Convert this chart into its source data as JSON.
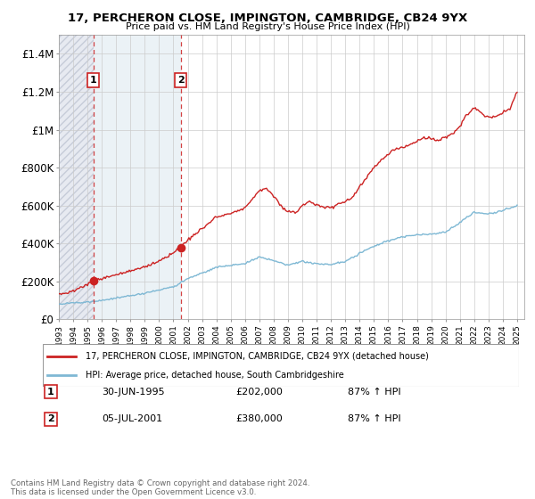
{
  "title": "17, PERCHERON CLOSE, IMPINGTON, CAMBRIDGE, CB24 9YX",
  "subtitle": "Price paid vs. HM Land Registry's House Price Index (HPI)",
  "legend_entry1": "17, PERCHERON CLOSE, IMPINGTON, CAMBRIDGE, CB24 9YX (detached house)",
  "legend_entry2": "HPI: Average price, detached house, South Cambridgeshire",
  "sale1_date": "30-JUN-1995",
  "sale1_price": 202000,
  "sale1_hpi": "87% ↑ HPI",
  "sale2_date": "05-JUL-2001",
  "sale2_price": 380000,
  "sale2_hpi": "87% ↑ HPI",
  "footer": "Contains HM Land Registry data © Crown copyright and database right 2024.\nThis data is licensed under the Open Government Licence v3.0.",
  "hpi_color": "#7eb8d4",
  "price_color": "#cc2222",
  "hatch_color": "#d8dde8",
  "light_blue_bg": "#dce8f0",
  "ylim": [
    0,
    1500000
  ],
  "yticks": [
    0,
    200000,
    400000,
    600000,
    800000,
    1000000,
    1200000,
    1400000
  ],
  "ytick_labels": [
    "£0",
    "£200K",
    "£400K",
    "£600K",
    "£800K",
    "£1M",
    "£1.2M",
    "£1.4M"
  ],
  "xmin": 1993,
  "xmax": 2025.5,
  "sale1_x": 1995.4167,
  "sale2_x": 2001.5,
  "hpi_keypoints": [
    [
      1993.0,
      80000
    ],
    [
      1994.0,
      88000
    ],
    [
      1995.0,
      93000
    ],
    [
      1996.0,
      100000
    ],
    [
      1997.0,
      112000
    ],
    [
      1998.0,
      125000
    ],
    [
      1999.0,
      138000
    ],
    [
      2000.0,
      155000
    ],
    [
      2001.0,
      172000
    ],
    [
      2002.0,
      215000
    ],
    [
      2003.0,
      245000
    ],
    [
      2004.0,
      275000
    ],
    [
      2005.0,
      285000
    ],
    [
      2006.0,
      295000
    ],
    [
      2007.0,
      330000
    ],
    [
      2008.0,
      310000
    ],
    [
      2009.0,
      285000
    ],
    [
      2010.0,
      305000
    ],
    [
      2011.0,
      295000
    ],
    [
      2012.0,
      290000
    ],
    [
      2013.0,
      305000
    ],
    [
      2014.0,
      350000
    ],
    [
      2015.0,
      385000
    ],
    [
      2016.0,
      415000
    ],
    [
      2017.0,
      435000
    ],
    [
      2018.0,
      445000
    ],
    [
      2019.0,
      450000
    ],
    [
      2020.0,
      460000
    ],
    [
      2021.0,
      510000
    ],
    [
      2022.0,
      565000
    ],
    [
      2023.0,
      555000
    ],
    [
      2024.0,
      575000
    ],
    [
      2025.0,
      600000
    ]
  ],
  "price_keypoints": [
    [
      1993.0,
      130000
    ],
    [
      1994.0,
      150000
    ],
    [
      1995.0,
      185000
    ],
    [
      1995.42,
      202000
    ],
    [
      1996.0,
      215000
    ],
    [
      1997.0,
      238000
    ],
    [
      1998.0,
      255000
    ],
    [
      1999.0,
      278000
    ],
    [
      2000.0,
      310000
    ],
    [
      2001.0,
      350000
    ],
    [
      2001.5,
      380000
    ],
    [
      2002.0,
      420000
    ],
    [
      2003.0,
      480000
    ],
    [
      2004.0,
      540000
    ],
    [
      2005.0,
      560000
    ],
    [
      2006.0,
      590000
    ],
    [
      2007.0,
      680000
    ],
    [
      2007.5,
      690000
    ],
    [
      2008.0,
      650000
    ],
    [
      2008.5,
      600000
    ],
    [
      2009.0,
      570000
    ],
    [
      2009.5,
      560000
    ],
    [
      2010.0,
      600000
    ],
    [
      2010.5,
      620000
    ],
    [
      2011.0,
      605000
    ],
    [
      2011.5,
      595000
    ],
    [
      2012.0,
      590000
    ],
    [
      2012.5,
      605000
    ],
    [
      2013.0,
      620000
    ],
    [
      2013.5,
      640000
    ],
    [
      2014.0,
      700000
    ],
    [
      2014.5,
      750000
    ],
    [
      2015.0,
      800000
    ],
    [
      2015.5,
      840000
    ],
    [
      2016.0,
      870000
    ],
    [
      2016.5,
      895000
    ],
    [
      2017.0,
      910000
    ],
    [
      2017.5,
      920000
    ],
    [
      2018.0,
      940000
    ],
    [
      2018.5,
      960000
    ],
    [
      2019.0,
      950000
    ],
    [
      2019.5,
      940000
    ],
    [
      2020.0,
      960000
    ],
    [
      2020.5,
      980000
    ],
    [
      2021.0,
      1020000
    ],
    [
      2021.5,
      1080000
    ],
    [
      2022.0,
      1120000
    ],
    [
      2022.5,
      1090000
    ],
    [
      2023.0,
      1060000
    ],
    [
      2023.5,
      1070000
    ],
    [
      2024.0,
      1090000
    ],
    [
      2024.5,
      1110000
    ],
    [
      2025.0,
      1200000
    ]
  ]
}
